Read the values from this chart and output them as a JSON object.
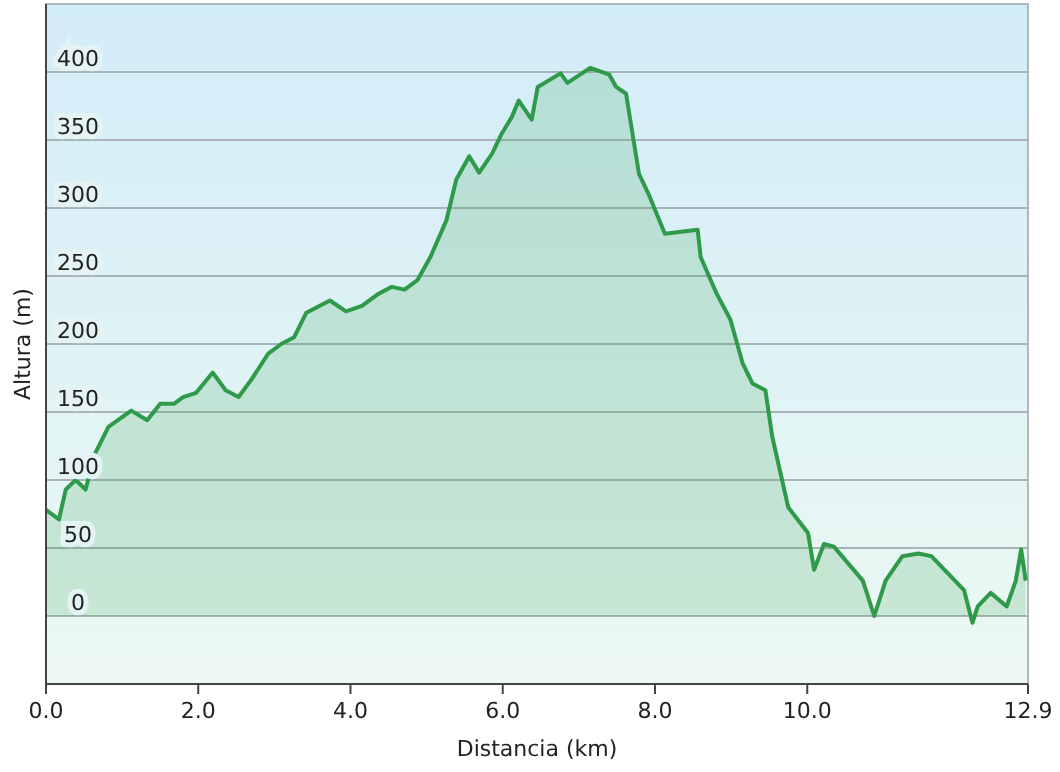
{
  "chart_data": {
    "type": "area",
    "xlabel": "Distancia (km)",
    "ylabel": "Altura (m)",
    "xlim": [
      0,
      12.9
    ],
    "ylim": [
      -50,
      450
    ],
    "xticks": [
      {
        "value": 0,
        "label": "0.0"
      },
      {
        "value": 2,
        "label": "2.0"
      },
      {
        "value": 4,
        "label": "4.0"
      },
      {
        "value": 6,
        "label": "6.0"
      },
      {
        "value": 8,
        "label": "8.0"
      },
      {
        "value": 10,
        "label": "10.0"
      },
      {
        "value": 12.9,
        "label": "12.9"
      }
    ],
    "yticks": [
      0,
      50,
      100,
      150,
      200,
      250,
      300,
      350,
      400
    ],
    "grid": "y",
    "x": [
      0,
      0.17,
      0.26,
      0.39,
      0.52,
      0.65,
      0.82,
      1.12,
      1.33,
      1.5,
      1.68,
      1.8,
      1.97,
      2.19,
      2.36,
      2.53,
      2.7,
      2.92,
      3.09,
      3.26,
      3.42,
      3.73,
      3.94,
      4.15,
      4.37,
      4.54,
      4.71,
      4.88,
      5.05,
      5.26,
      5.39,
      5.56,
      5.69,
      5.86,
      5.99,
      6.12,
      6.21,
      6.38,
      6.46,
      6.76,
      6.85,
      7.15,
      7.4,
      7.49,
      7.62,
      7.79,
      7.91,
      8.13,
      8.56,
      8.6,
      8.81,
      8.99,
      9.15,
      9.28,
      9.45,
      9.54,
      9.75,
      10.01,
      10.09,
      10.22,
      10.35,
      10.73,
      10.88,
      11.03,
      11.25,
      11.46,
      11.63,
      12.06,
      12.17,
      12.24,
      12.41,
      12.62,
      12.74,
      12.81,
      12.87
    ],
    "series": [
      {
        "color": "#2e9a4a",
        "values": [
          78,
          71,
          93,
          100,
          93,
          120,
          139,
          151,
          144,
          156,
          156,
          161,
          164,
          179,
          166,
          161,
          174,
          193,
          200,
          205,
          223,
          232,
          224,
          228,
          237,
          242,
          240,
          247,
          264,
          291,
          321,
          338,
          326,
          340,
          355,
          367,
          379,
          365,
          389,
          399,
          392,
          403,
          398,
          389,
          384,
          325,
          311,
          281,
          284,
          264,
          237,
          218,
          186,
          171,
          166,
          132,
          80,
          61,
          34,
          53,
          51,
          26,
          0,
          26,
          44,
          46,
          44,
          19,
          -5,
          7,
          17,
          7,
          26,
          49,
          26
        ]
      }
    ]
  }
}
